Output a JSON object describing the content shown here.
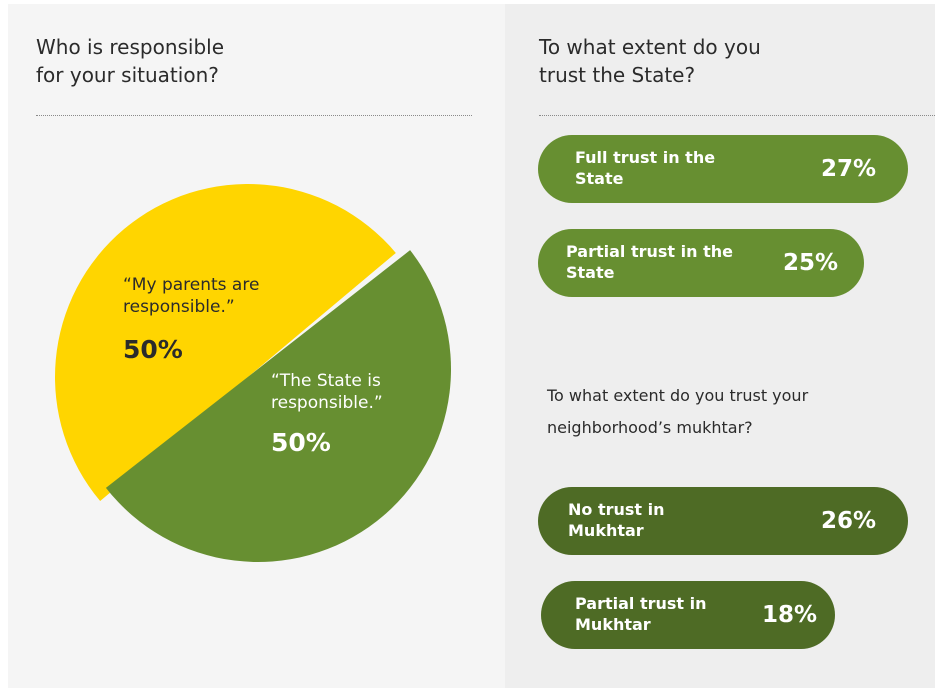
{
  "colors": {
    "yellow": "#ffd500",
    "green": "#678f31",
    "dark_green": "#4e6b25",
    "text": "#2b2b2b"
  },
  "left_heading": {
    "line1": "Who is responsible",
    "line2": "for your situation?"
  },
  "state_heading": {
    "line1": "To what extent do you",
    "line2": "trust the State?"
  },
  "mukhtar_heading": {
    "line1": "To what extent do you trust your",
    "line2": "neighborhood’s mukhtar?"
  },
  "pie_labels": {
    "parents_line1": "“My parents are",
    "parents_line2": "responsible.”",
    "parents_pct": "50%",
    "state_line1": "“The State is",
    "state_line2": "responsible.”",
    "state_pct": "50%"
  },
  "pills": [
    {
      "line1": "Full trust in the",
      "line2": "State",
      "pct": "27%"
    },
    {
      "line1": "Partial trust in the",
      "line2": "State",
      "pct": "25%"
    },
    {
      "line1": "No trust in",
      "line2": "Mukhtar",
      "pct": "26%"
    },
    {
      "line1": "Partial trust in",
      "line2": "Mukhtar",
      "pct": "18%"
    }
  ],
  "chart_data": [
    {
      "type": "pie",
      "title": "Who is responsible for your situation?",
      "categories": [
        "“My parents are responsible.”",
        "“The State is responsible.”"
      ],
      "values": [
        50,
        50
      ],
      "colors": [
        "#ffd500",
        "#678f31"
      ]
    },
    {
      "type": "bar",
      "title": "To what extent do you trust the State?",
      "categories": [
        "Full trust in the State",
        "Partial trust in the State"
      ],
      "values": [
        27,
        25
      ]
    },
    {
      "type": "bar",
      "title": "To what extent do you trust your neighborhood’s mukhtar?",
      "categories": [
        "No trust in Mukhtar",
        "Partial trust in Mukhtar"
      ],
      "values": [
        26,
        18
      ]
    }
  ]
}
